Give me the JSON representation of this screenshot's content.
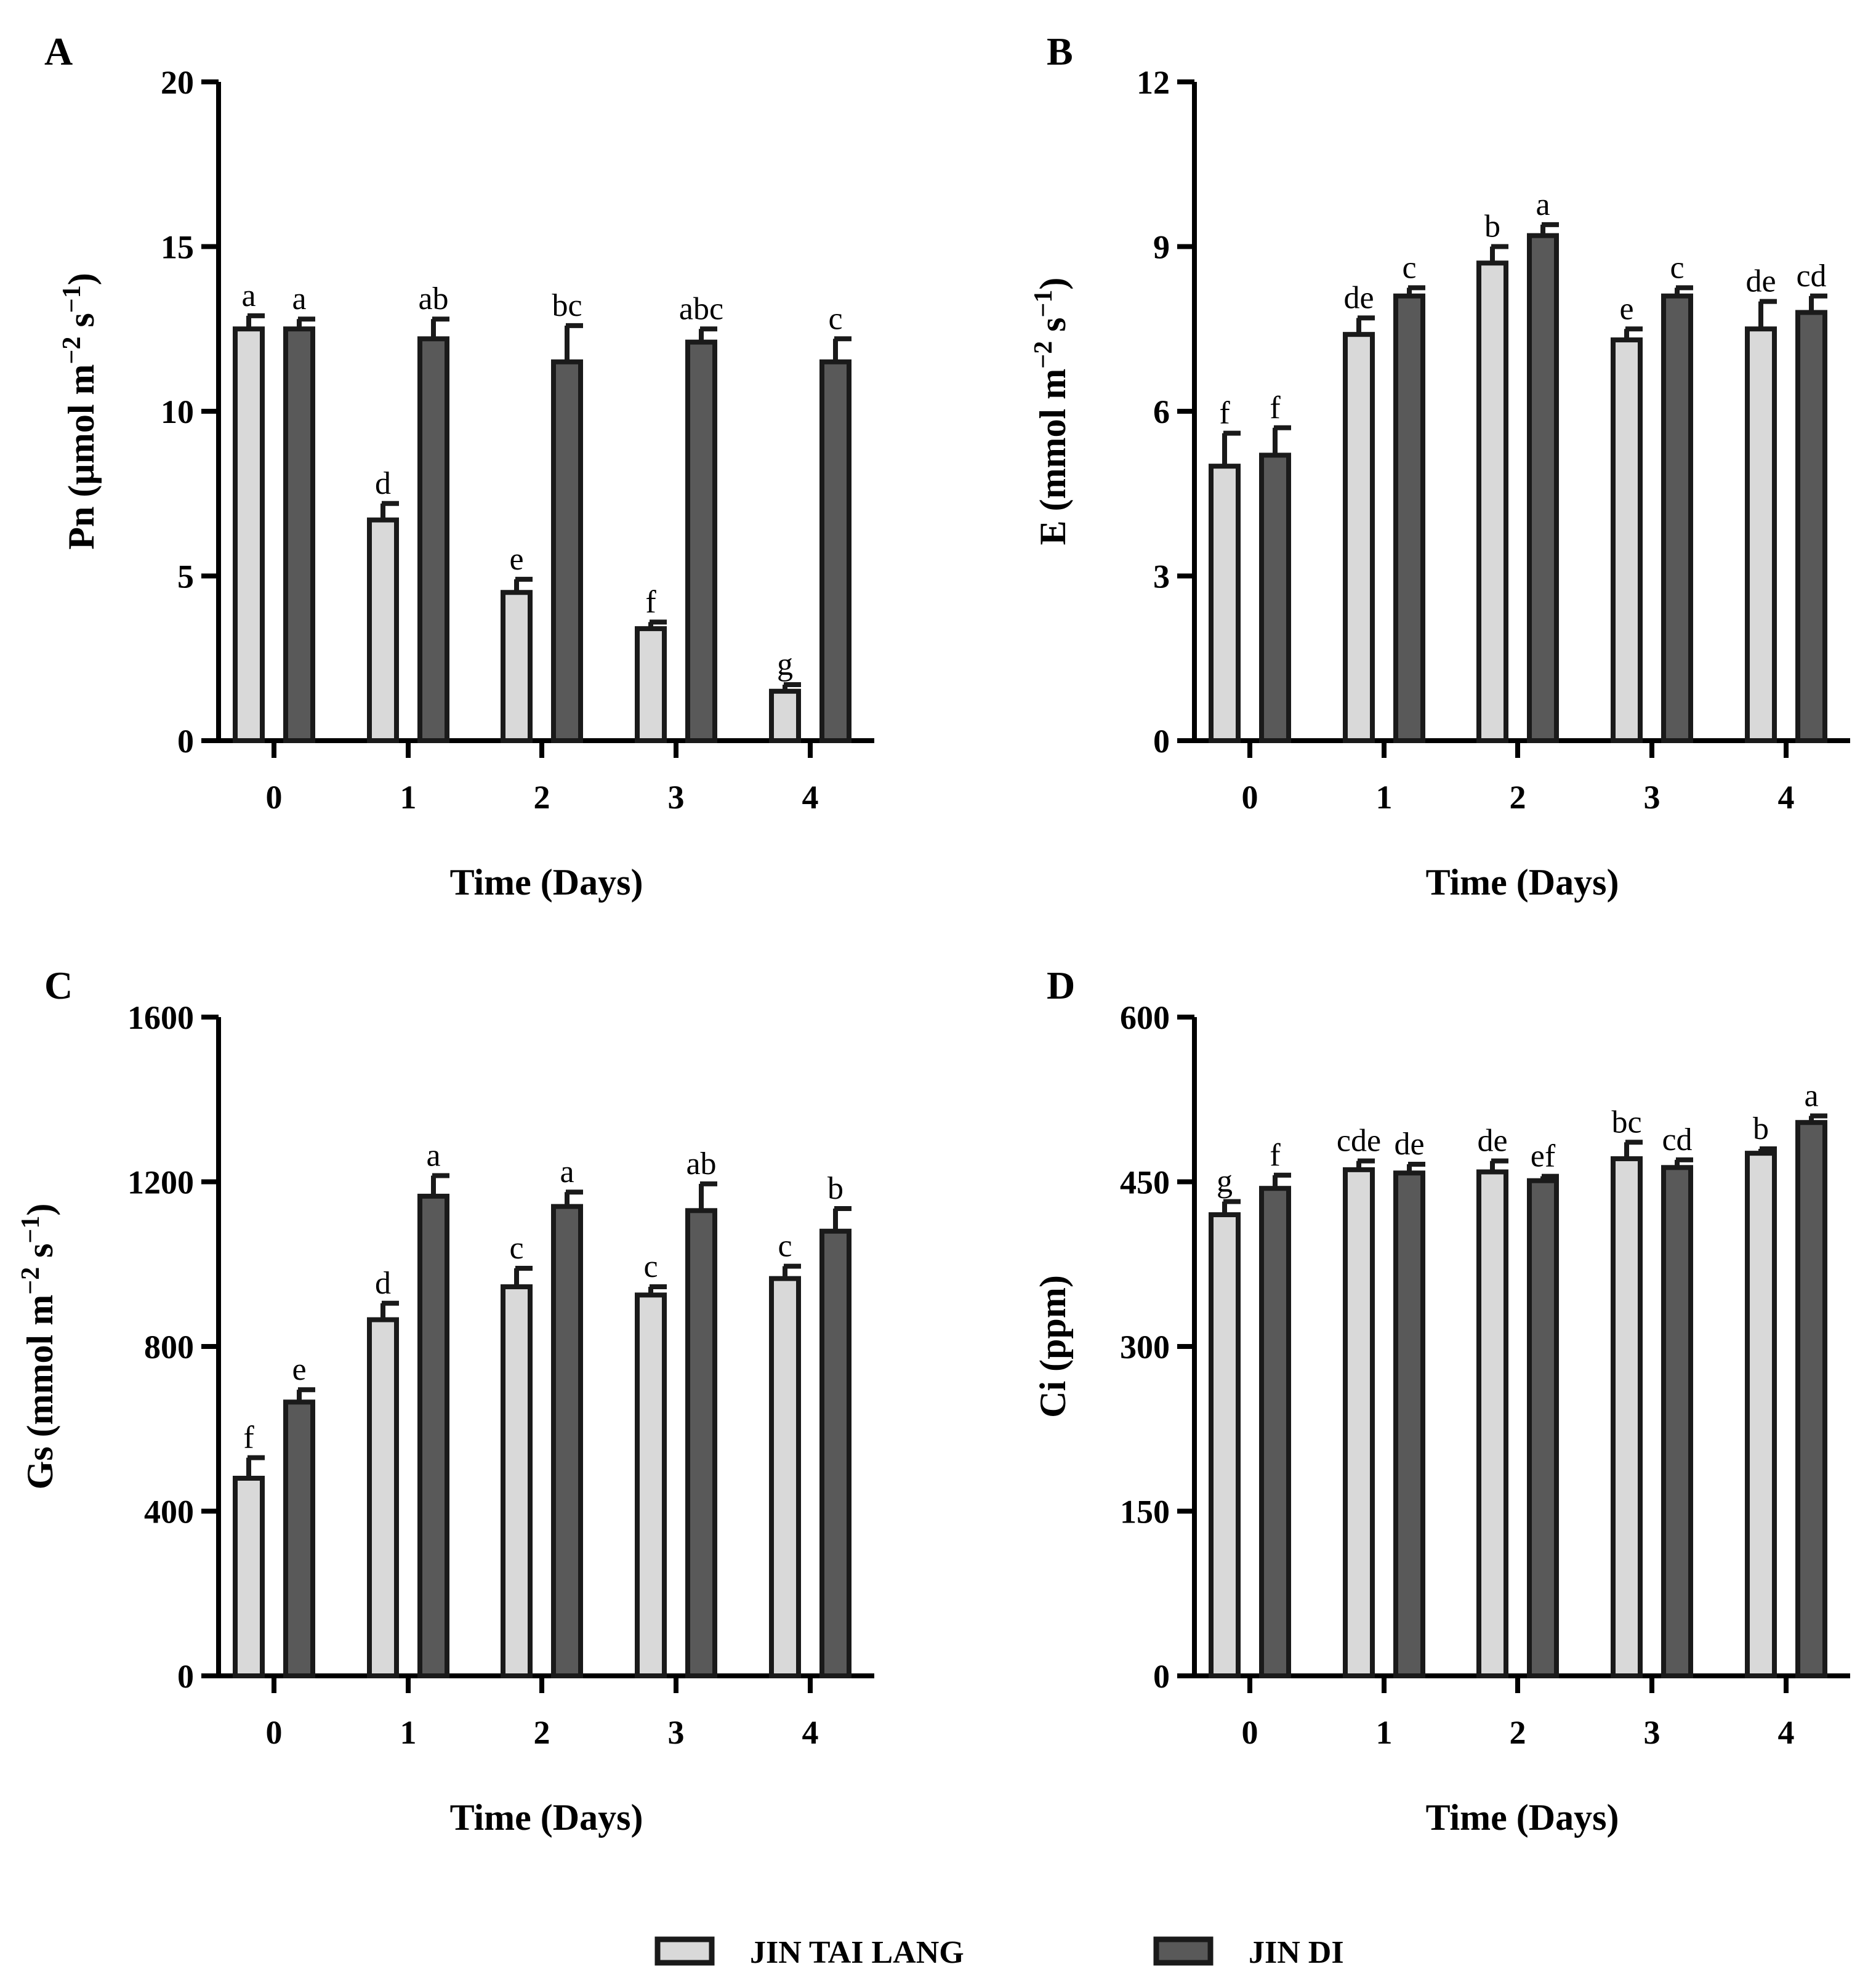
{
  "legend": {
    "items": [
      {
        "label": "JIN TAI LANG",
        "color": "#d9d9d9"
      },
      {
        "label": "JIN DI",
        "color": "#595959"
      }
    ]
  },
  "chart_data": [
    {
      "panel": "A",
      "type": "bar",
      "xlabel": "Time (Days)",
      "ylabel": "Pn (µmol m",
      "ylabel_unit": {
        "sup1": "−2",
        "mid": " s",
        "sup2": "−1",
        "end": ")"
      },
      "ylim": [
        0,
        20
      ],
      "yticks": [
        0,
        5,
        10,
        15,
        20
      ],
      "categories": [
        "0",
        "1",
        "2",
        "3",
        "4"
      ],
      "series": [
        {
          "name": "JIN TAI LANG",
          "values": [
            12.5,
            6.7,
            4.5,
            3.4,
            1.5
          ],
          "errors": [
            0.4,
            0.5,
            0.4,
            0.2,
            0.2
          ],
          "labels": [
            "a",
            "d",
            "e",
            "f",
            "g"
          ]
        },
        {
          "name": "JIN DI",
          "values": [
            12.5,
            12.2,
            11.5,
            12.1,
            11.5
          ],
          "errors": [
            0.3,
            0.6,
            1.1,
            0.4,
            0.7
          ],
          "labels": [
            "a",
            "ab",
            "bc",
            "abc",
            "c"
          ]
        }
      ]
    },
    {
      "panel": "B",
      "type": "bar",
      "xlabel": "Time (Days)",
      "ylabel": "E (mmol m",
      "ylabel_unit": {
        "sup1": "−2",
        "mid": " s",
        "sup2": "−1",
        "end": ")"
      },
      "ylim": [
        0,
        12
      ],
      "yticks": [
        0,
        3,
        6,
        9,
        12
      ],
      "categories": [
        "0",
        "1",
        "2",
        "3",
        "4"
      ],
      "series": [
        {
          "name": "JIN TAI LANG",
          "values": [
            5.0,
            7.4,
            8.7,
            7.3,
            7.5
          ],
          "errors": [
            0.6,
            0.3,
            0.3,
            0.2,
            0.5
          ],
          "labels": [
            "f",
            "de",
            "b",
            "e",
            "de"
          ]
        },
        {
          "name": "JIN DI",
          "values": [
            5.2,
            8.1,
            9.2,
            8.1,
            7.8
          ],
          "errors": [
            0.5,
            0.15,
            0.2,
            0.15,
            0.3
          ],
          "labels": [
            "f",
            "c",
            "a",
            "c",
            "cd"
          ]
        }
      ]
    },
    {
      "panel": "C",
      "type": "bar",
      "xlabel": "Time (Days)",
      "ylabel": "Gs (mmol m",
      "ylabel_unit": {
        "sup1": "−2",
        "mid": " s",
        "sup2": "−1",
        "end": ")"
      },
      "ylim": [
        0,
        1600
      ],
      "yticks": [
        0,
        400,
        800,
        1200,
        1600
      ],
      "categories": [
        "0",
        "1",
        "2",
        "3",
        "4"
      ],
      "series": [
        {
          "name": "JIN TAI LANG",
          "values": [
            480,
            865,
            945,
            925,
            965
          ],
          "errors": [
            50,
            40,
            45,
            20,
            30
          ],
          "labels": [
            "f",
            "d",
            "c",
            "c",
            "c"
          ]
        },
        {
          "name": "JIN DI",
          "values": [
            665,
            1165,
            1140,
            1130,
            1080
          ],
          "errors": [
            30,
            50,
            35,
            65,
            55
          ],
          "labels": [
            "e",
            "a",
            "a",
            "ab",
            "b"
          ]
        }
      ]
    },
    {
      "panel": "D",
      "type": "bar",
      "xlabel": "Time (Days)",
      "ylabel": "Ci (ppm)",
      "ylim": [
        0,
        600
      ],
      "yticks": [
        0,
        150,
        300,
        450,
        600
      ],
      "categories": [
        "0",
        "1",
        "2",
        "3",
        "4"
      ],
      "series": [
        {
          "name": "JIN TAI LANG",
          "values": [
            420,
            461,
            459,
            471,
            476
          ],
          "errors": [
            12,
            8,
            10,
            15,
            4
          ],
          "labels": [
            "g",
            "cde",
            "de",
            "bc",
            "b"
          ]
        },
        {
          "name": "JIN DI",
          "values": [
            444,
            458,
            451,
            463,
            504
          ],
          "errors": [
            12,
            8,
            4,
            7,
            6
          ],
          "labels": [
            "f",
            "de",
            "ef",
            "cd",
            "a"
          ]
        }
      ]
    }
  ]
}
